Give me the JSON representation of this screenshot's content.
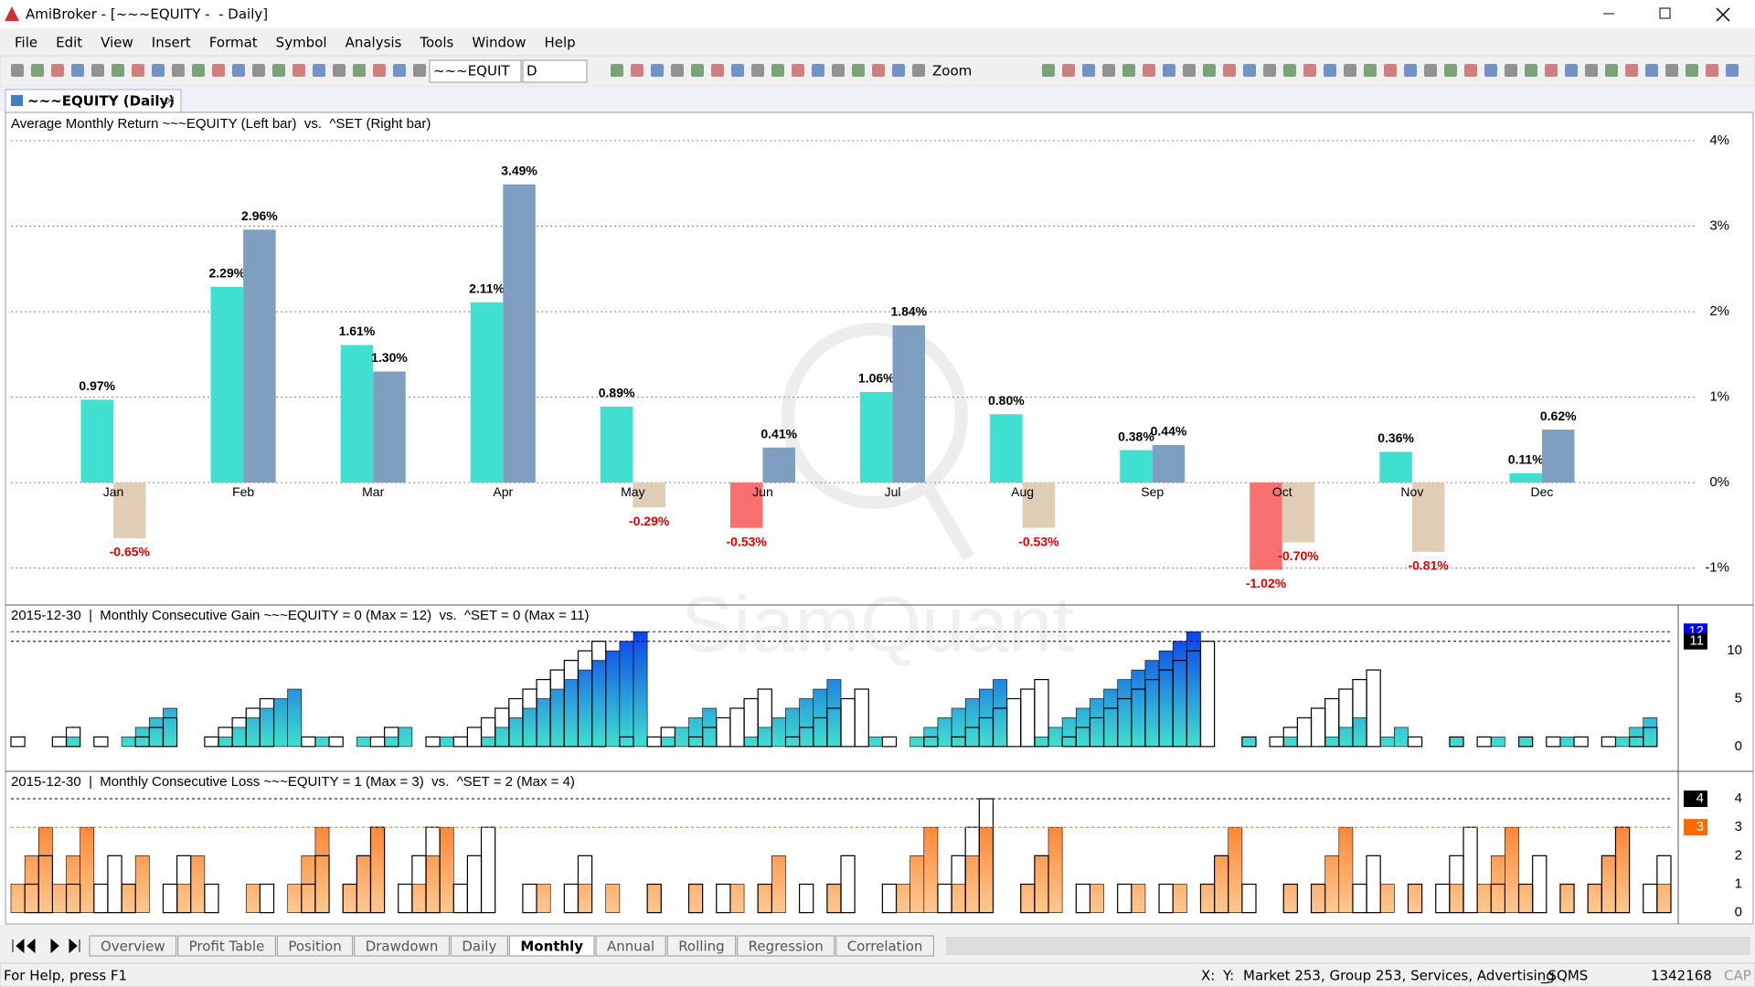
{
  "window": {
    "title": "AmiBroker - [~~~EQUITY -  - Daily]"
  },
  "menu": [
    "File",
    "Edit",
    "View",
    "Insert",
    "Format",
    "Symbol",
    "Analysis",
    "Tools",
    "Window",
    "Help"
  ],
  "toolbar": {
    "symbol": "~~~EQUIT",
    "interval": "D",
    "zoom": "Zoom"
  },
  "document_tab": "~~~EQUITY (Daily)",
  "watermark": "SiamQuant",
  "chart_data": [
    {
      "type": "bar",
      "title": "Average Monthly Return ~~~EQUITY (Left bar)  vs.  ^SET (Right bar)",
      "categories": [
        "Jan",
        "Feb",
        "Mar",
        "Apr",
        "May",
        "Jun",
        "Jul",
        "Aug",
        "Sep",
        "Oct",
        "Nov",
        "Dec"
      ],
      "series": [
        {
          "name": "~~~EQUITY",
          "color": "#40e0d0",
          "negative_color": "#f87070",
          "values": [
            0.97,
            2.29,
            1.61,
            2.11,
            0.89,
            -0.53,
            1.06,
            0.8,
            0.38,
            -1.02,
            0.36,
            0.11
          ],
          "value_labels": [
            "0.97%",
            "2.29%",
            "1.61%",
            "2.11%",
            "0.89%",
            "-0.53%",
            "1.06%",
            "0.80%",
            "0.38%",
            "-1.02%",
            "0.36%",
            "0.11%"
          ]
        },
        {
          "name": "^SET",
          "color": "#7f9fc0",
          "negative_color": "#e0cdb5",
          "values": [
            -0.65,
            2.96,
            1.3,
            3.49,
            -0.29,
            0.41,
            1.84,
            -0.53,
            0.44,
            -0.7,
            -0.81,
            0.62
          ],
          "value_labels": [
            "-0.65%",
            "2.96%",
            "1.30%",
            "3.49%",
            "-0.29%",
            "0.41%",
            "1.84%",
            "-0.53%",
            "0.44%",
            "-0.70%",
            "-0.81%",
            "0.62%"
          ]
        }
      ],
      "ylim": [
        -1.4,
        4.3
      ],
      "yticks": [
        {
          "value": -1,
          "label": "-1%"
        },
        {
          "value": 0,
          "label": "0%"
        },
        {
          "value": 1,
          "label": "1%"
        },
        {
          "value": 2,
          "label": "2%"
        },
        {
          "value": 3,
          "label": "3%"
        },
        {
          "value": 4,
          "label": "4%"
        }
      ],
      "grid": true
    },
    {
      "type": "step",
      "title": "2015-12-30  |  Monthly Consecutive Gain ~~~EQUITY = 0 (Max = 12)  vs.  ^SET = 0 (Max = 11)",
      "series": [
        {
          "name": "~~~EQUITY",
          "gradient": [
            "#0020f0",
            "#40e0d0"
          ],
          "color": "#000000",
          "values": [
            0,
            0,
            0,
            0,
            1,
            0,
            0,
            0,
            1,
            2,
            3,
            4,
            0,
            0,
            0,
            1,
            2,
            3,
            4,
            5,
            6,
            0,
            1,
            0,
            0,
            1,
            0,
            1,
            2,
            0,
            0,
            1,
            0,
            0,
            1,
            2,
            3,
            4,
            5,
            6,
            7,
            8,
            9,
            10,
            11,
            12,
            0,
            1,
            2,
            3,
            4,
            0,
            0,
            1,
            2,
            3,
            4,
            5,
            6,
            7,
            0,
            0,
            1,
            0,
            0,
            1,
            2,
            3,
            4,
            5,
            6,
            7,
            0,
            0,
            1,
            2,
            3,
            4,
            5,
            6,
            7,
            8,
            9,
            10,
            11,
            12,
            0,
            0,
            0,
            1,
            0,
            0,
            1,
            0,
            0,
            1,
            2,
            3,
            0,
            1,
            2,
            0,
            0,
            0,
            1,
            0,
            0,
            1,
            0,
            1,
            0,
            0,
            1,
            0,
            0,
            0,
            1,
            2,
            3,
            0
          ]
        },
        {
          "name": "^SET",
          "color": "#000000",
          "values": [
            1,
            0,
            0,
            1,
            2,
            0,
            1,
            0,
            0,
            1,
            2,
            3,
            0,
            0,
            1,
            2,
            3,
            4,
            5,
            0,
            0,
            1,
            0,
            1,
            0,
            0,
            1,
            2,
            0,
            0,
            1,
            0,
            1,
            2,
            3,
            4,
            5,
            6,
            7,
            8,
            9,
            10,
            11,
            0,
            1,
            0,
            1,
            2,
            0,
            1,
            2,
            3,
            4,
            5,
            6,
            0,
            1,
            2,
            3,
            4,
            5,
            6,
            0,
            1,
            0,
            0,
            1,
            0,
            1,
            2,
            3,
            4,
            5,
            6,
            7,
            0,
            1,
            2,
            3,
            4,
            5,
            6,
            7,
            8,
            9,
            10,
            11,
            0,
            0,
            1,
            0,
            1,
            2,
            3,
            4,
            5,
            6,
            7,
            8,
            0,
            0,
            1,
            0,
            0,
            1,
            0,
            1,
            0,
            0,
            1,
            0,
            1,
            0,
            1,
            0,
            1,
            0,
            1,
            2,
            0
          ]
        }
      ],
      "ylim": [
        -2.4,
        14.6
      ],
      "yticks": [
        0,
        5,
        10
      ],
      "reference_lines": [
        {
          "value": 12,
          "color": "#0000ff"
        },
        {
          "value": 11,
          "color": "#000000"
        }
      ],
      "grid": false
    },
    {
      "type": "step",
      "title": "2015-12-30  |  Monthly Consecutive Loss ~~~EQUITY = 1 (Max = 3)  vs.  ^SET = 2 (Max = 4)",
      "series": [
        {
          "name": "~~~EQUITY",
          "gradient": [
            "#ff6000",
            "#ffc890"
          ],
          "color": "#000000",
          "values": [
            1,
            2,
            3,
            1,
            2,
            3,
            0,
            0,
            1,
            2,
            0,
            0,
            1,
            2,
            0,
            0,
            0,
            1,
            0,
            0,
            1,
            2,
            3,
            0,
            1,
            2,
            3,
            0,
            0,
            1,
            2,
            3,
            0,
            0,
            0,
            0,
            0,
            0,
            1,
            0,
            0,
            1,
            0,
            1,
            0,
            0,
            1,
            0,
            0,
            1,
            0,
            0,
            1,
            0,
            1,
            2,
            0,
            0,
            0,
            1,
            0,
            0,
            0,
            0,
            1,
            2,
            3,
            0,
            1,
            2,
            3,
            0,
            0,
            1,
            2,
            3,
            0,
            0,
            1,
            0,
            0,
            1,
            0,
            0,
            1,
            0,
            1,
            2,
            3,
            0,
            0,
            0,
            1,
            0,
            1,
            2,
            3,
            0,
            0,
            1,
            0,
            1,
            0,
            0,
            1,
            0,
            1,
            2,
            3,
            1,
            0,
            0,
            1,
            0,
            1,
            2,
            3,
            0,
            0,
            1
          ]
        },
        {
          "name": "^SET",
          "color": "#000000",
          "values": [
            0,
            1,
            2,
            0,
            1,
            0,
            1,
            2,
            1,
            0,
            0,
            1,
            2,
            0,
            1,
            0,
            0,
            0,
            1,
            0,
            0,
            1,
            2,
            0,
            1,
            2,
            3,
            0,
            1,
            2,
            3,
            0,
            1,
            2,
            3,
            0,
            0,
            1,
            0,
            0,
            1,
            2,
            0,
            0,
            0,
            0,
            1,
            0,
            0,
            1,
            0,
            1,
            0,
            0,
            1,
            0,
            0,
            1,
            0,
            1,
            2,
            0,
            0,
            1,
            0,
            0,
            0,
            1,
            2,
            3,
            4,
            0,
            0,
            1,
            2,
            0,
            0,
            1,
            0,
            0,
            1,
            0,
            0,
            1,
            0,
            0,
            1,
            2,
            0,
            1,
            0,
            0,
            1,
            0,
            1,
            0,
            0,
            1,
            2,
            0,
            0,
            1,
            0,
            1,
            2,
            3,
            0,
            1,
            0,
            1,
            2,
            0,
            1,
            0,
            1,
            2,
            3,
            0,
            1,
            2
          ]
        }
      ],
      "ylim": [
        -0.3,
        4.9
      ],
      "yticks": [
        0,
        1,
        2,
        3,
        4
      ],
      "reference_lines": [
        {
          "value": 4,
          "color": "#000000"
        },
        {
          "value": 3,
          "color": "#ff6a00"
        }
      ],
      "grid": false
    }
  ],
  "sheet_tabs": [
    "Overview",
    "Profit Table",
    "Position",
    "Drawdown",
    "Daily",
    "Monthly",
    "Annual",
    "Rolling",
    "Regression",
    "Correlation"
  ],
  "active_tab": "Monthly",
  "status_bar": {
    "help": "For Help, press F1",
    "x": "X:",
    "y": "Y:",
    "info": "Market 253, Group 253, Services, Advertising",
    "db": "_SQMS",
    "count": "1342168",
    "caps": "CAP"
  }
}
